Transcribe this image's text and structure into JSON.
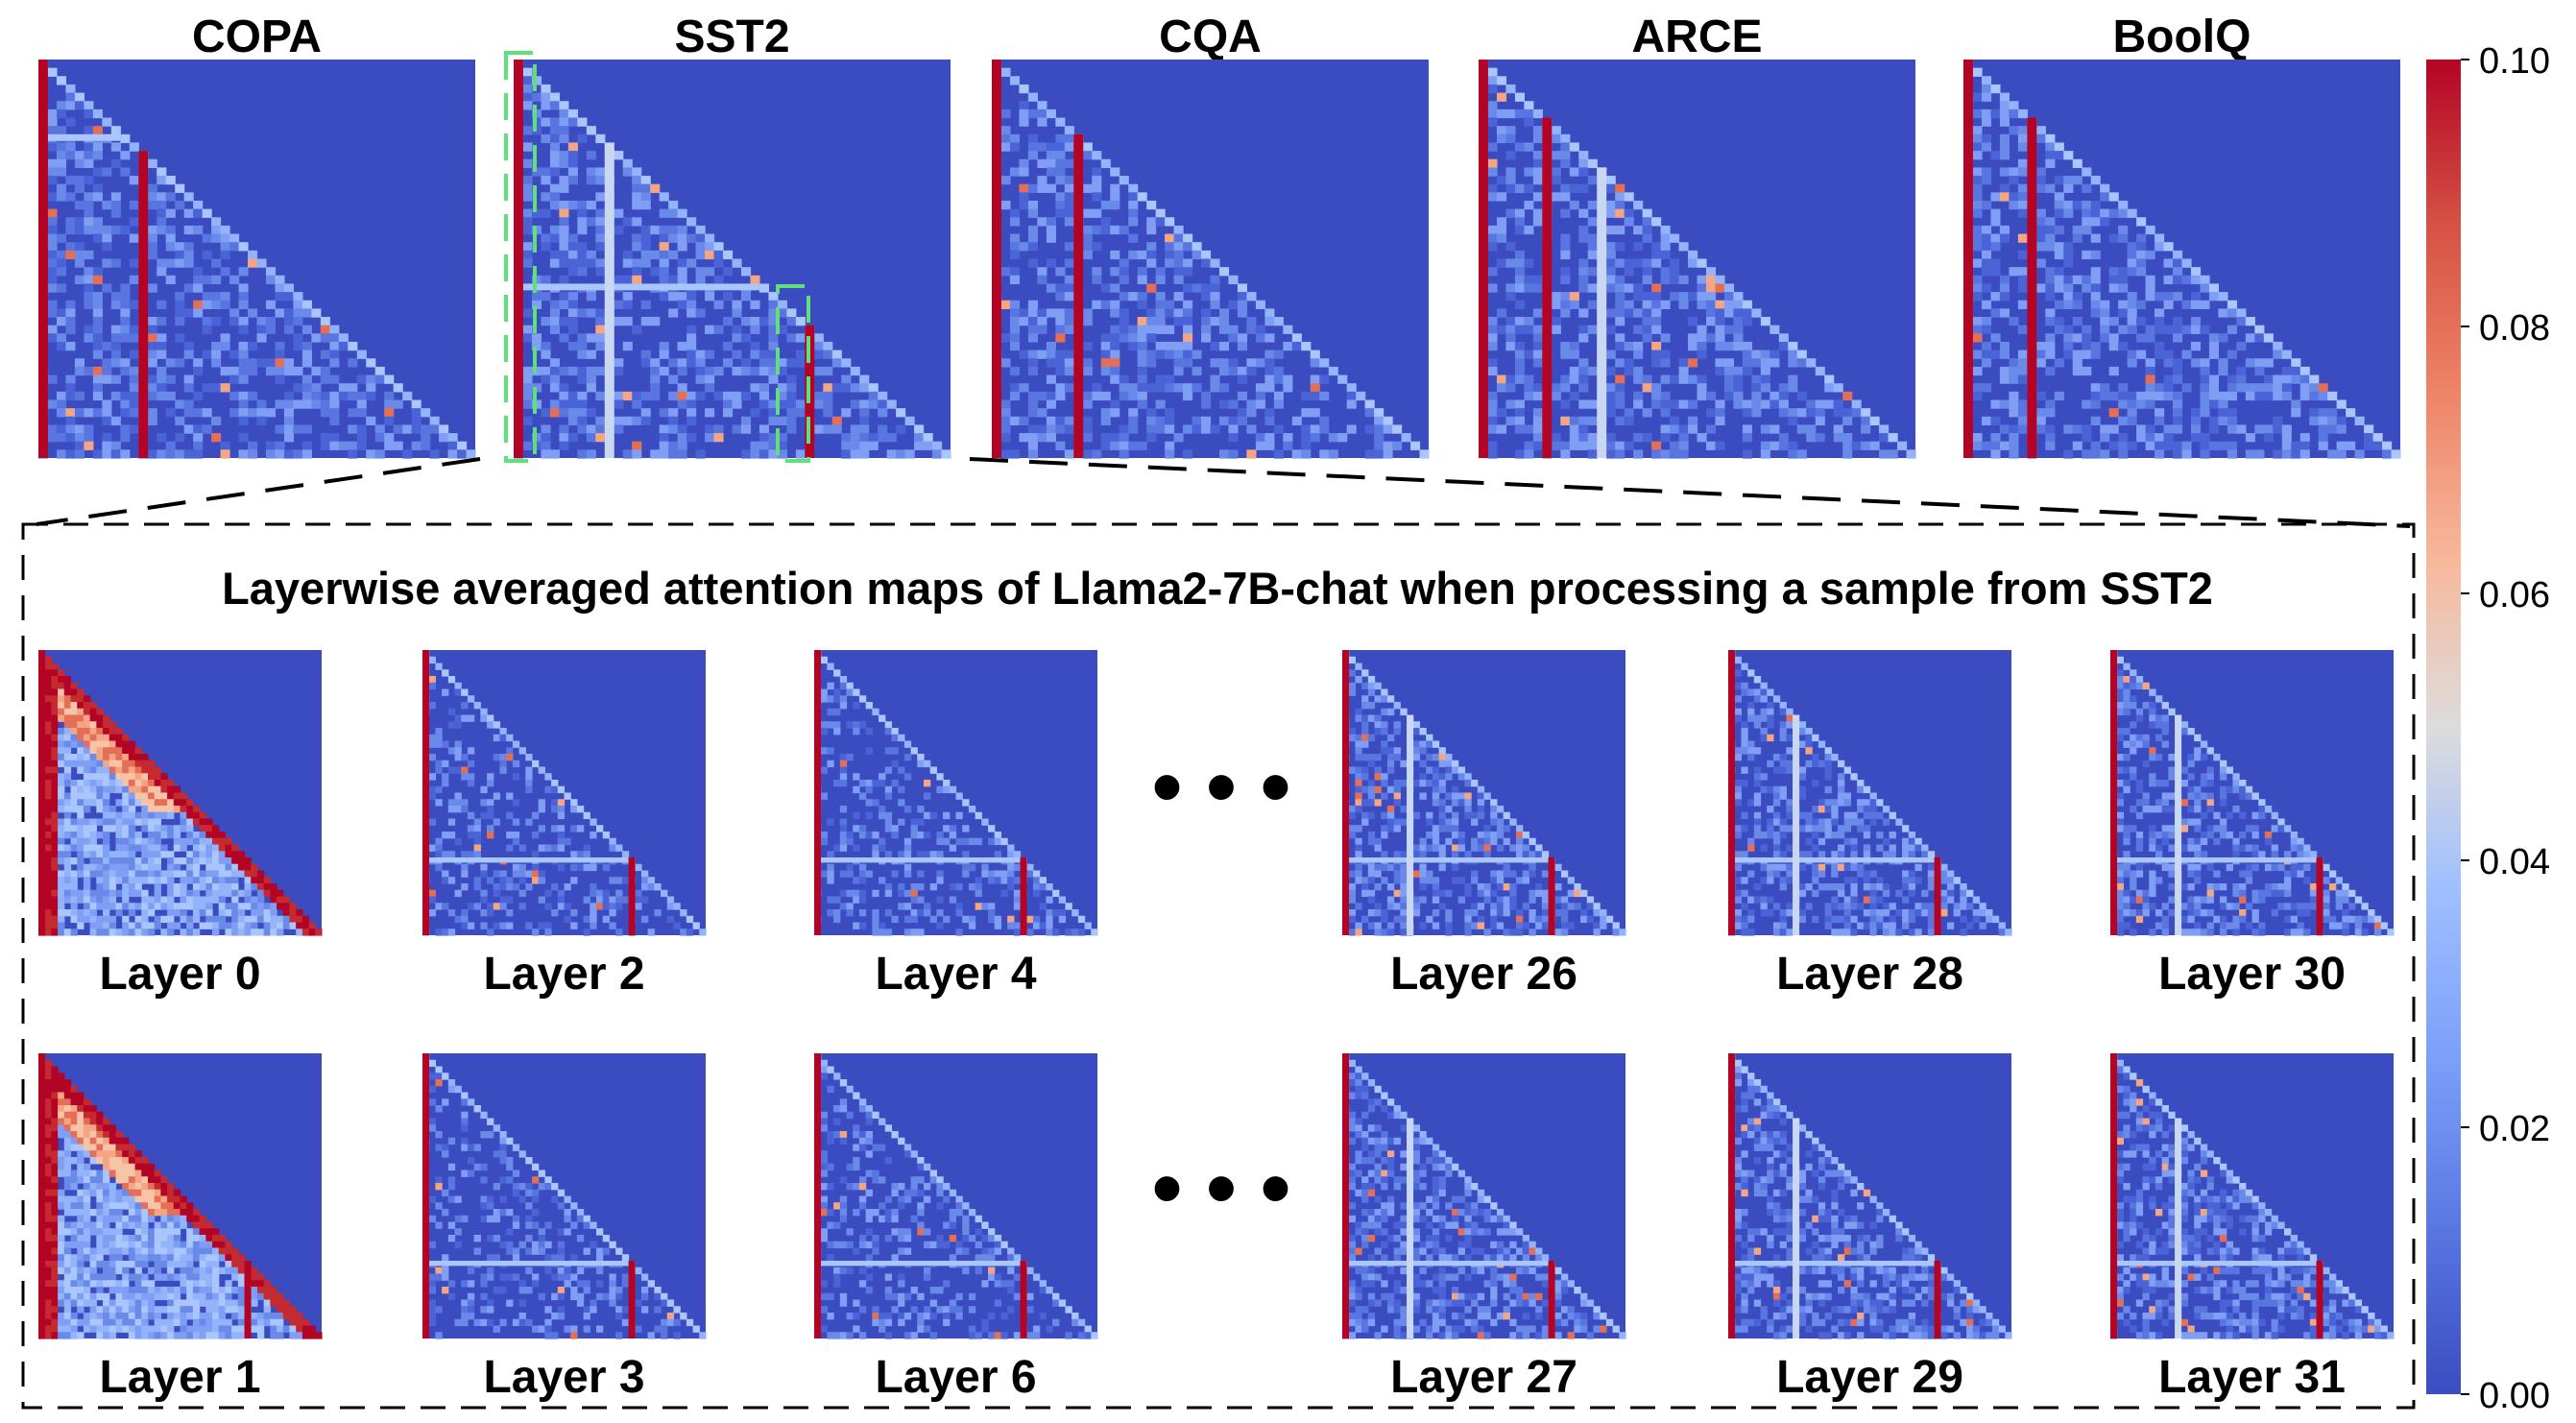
{
  "chart_data": {
    "type": "heatmap",
    "colormap": "coolwarm",
    "colorbar": {
      "range": [
        0.0,
        0.1
      ],
      "ticks": [
        "0.10",
        "0.08",
        "0.06",
        "0.04",
        "0.02",
        "0.00"
      ]
    },
    "top_row": [
      {
        "label": "COPA",
        "sink_columns": [
          0,
          11
        ],
        "highlight_boxes": false
      },
      {
        "label": "SST2",
        "sink_columns": [
          0,
          10,
          32
        ],
        "highlight_boxes": true
      },
      {
        "label": "CQA",
        "sink_columns": [
          0,
          9
        ],
        "highlight_boxes": false
      },
      {
        "label": "ARCE",
        "sink_columns": [
          0,
          7,
          13
        ],
        "highlight_boxes": false
      },
      {
        "label": "BoolQ",
        "sink_columns": [
          0,
          7
        ],
        "highlight_boxes": false
      }
    ],
    "inset_title": "Layerwise averaged attention maps of Llama2-7B-chat when processing a sample from SST2",
    "ellipsis": "• • •",
    "layers_row1": [
      {
        "label": "Layer 0",
        "sink_columns": [
          0
        ]
      },
      {
        "label": "Layer 2",
        "sink_columns": [
          0,
          32
        ]
      },
      {
        "label": "Layer 4",
        "sink_columns": [
          0,
          32
        ]
      },
      {
        "label": "Layer 26",
        "sink_columns": [
          0,
          10,
          32
        ]
      },
      {
        "label": "Layer 28",
        "sink_columns": [
          0,
          10,
          32
        ]
      },
      {
        "label": "Layer 30",
        "sink_columns": [
          0,
          10,
          32
        ]
      }
    ],
    "layers_row2": [
      {
        "label": "Layer 1",
        "sink_columns": [
          0,
          32
        ]
      },
      {
        "label": "Layer 3",
        "sink_columns": [
          0,
          32
        ]
      },
      {
        "label": "Layer 6",
        "sink_columns": [
          0,
          32
        ]
      },
      {
        "label": "Layer 27",
        "sink_columns": [
          0,
          10,
          32
        ]
      },
      {
        "label": "Layer 29",
        "sink_columns": [
          0,
          10,
          32
        ]
      },
      {
        "label": "Layer 31",
        "sink_columns": [
          0,
          10,
          32
        ]
      }
    ]
  }
}
